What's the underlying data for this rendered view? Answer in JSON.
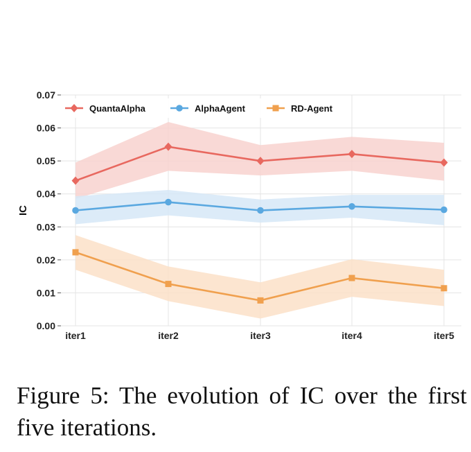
{
  "chart_data": {
    "type": "line",
    "categories": [
      "iter1",
      "iter2",
      "iter3",
      "iter4",
      "iter5"
    ],
    "ylabel": "IC",
    "ylim": [
      0,
      0.07
    ],
    "yticks": [
      "0.00",
      "0.01",
      "0.02",
      "0.03",
      "0.04",
      "0.05",
      "0.06",
      "0.07"
    ],
    "grid": true,
    "legend": "top",
    "series": [
      {
        "name": "QuantaAlpha",
        "color": "#e8685f",
        "band": "#f8d2cf",
        "marker": "diamond",
        "values": [
          0.044,
          0.0543,
          0.05,
          0.0521,
          0.0495
        ],
        "lower": [
          0.0385,
          0.047,
          0.0456,
          0.047,
          0.044
        ],
        "upper": [
          0.0495,
          0.0618,
          0.0548,
          0.0573,
          0.0555
        ]
      },
      {
        "name": "AlphaAgent",
        "color": "#5aa8e0",
        "band": "#d6e8f7",
        "marker": "circle",
        "values": [
          0.035,
          0.0375,
          0.035,
          0.0362,
          0.0352
        ],
        "lower": [
          0.0308,
          0.0335,
          0.0313,
          0.0328,
          0.0305
        ],
        "upper": [
          0.0393,
          0.0412,
          0.0383,
          0.0397,
          0.0397
        ]
      },
      {
        "name": "RD-Agent",
        "color": "#f0a04e",
        "band": "#fbe0c8",
        "marker": "square",
        "values": [
          0.0223,
          0.0127,
          0.0077,
          0.0145,
          0.0114
        ],
        "lower": [
          0.017,
          0.0075,
          0.0022,
          0.0088,
          0.006
        ],
        "upper": [
          0.0275,
          0.018,
          0.0132,
          0.0202,
          0.017
        ]
      }
    ]
  },
  "caption": "Figure 5:  The evolution of IC over the first five iterations."
}
